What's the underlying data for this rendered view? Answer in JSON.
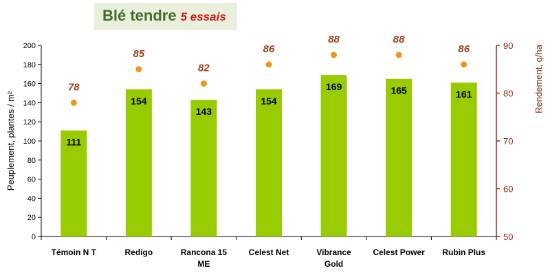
{
  "chart_data": {
    "type": "bar",
    "title": "Blé tendre",
    "subtitle": "5 essais",
    "categories": [
      "Témoin N T",
      "Redigo",
      "Rancona 15 ME",
      "Celest  Net",
      "Vibrance Gold",
      "Celest Power",
      "Rubin Plus"
    ],
    "category_lines": [
      [
        "Témoin N T"
      ],
      [
        "Redigo"
      ],
      [
        "Rancona 15",
        "ME"
      ],
      [
        "Celest  Net"
      ],
      [
        "Vibrance",
        "Gold"
      ],
      [
        "Celest Power"
      ],
      [
        "Rubin Plus"
      ]
    ],
    "series": [
      {
        "name": "Peuplement, plantes / m²",
        "type": "bar",
        "axis": "left",
        "color": "#99cc00",
        "values": [
          111,
          154,
          143,
          154,
          169,
          165,
          161
        ]
      },
      {
        "name": "Rendement, q/ha",
        "type": "scatter",
        "axis": "right",
        "color": "#f0921e",
        "values": [
          78,
          85,
          82,
          86,
          88,
          88,
          86
        ]
      }
    ],
    "ylabel": "Peuplement, plantes / m²",
    "ylabel_right": "Rendement, q/ha",
    "ylim": [
      0,
      200
    ],
    "yticks": [
      0,
      20,
      40,
      60,
      80,
      100,
      120,
      140,
      160,
      180,
      200
    ],
    "ylim_right": [
      50,
      90
    ],
    "yticks_right": [
      50,
      60,
      70,
      80,
      90
    ],
    "grid": false,
    "legend": "none"
  }
}
